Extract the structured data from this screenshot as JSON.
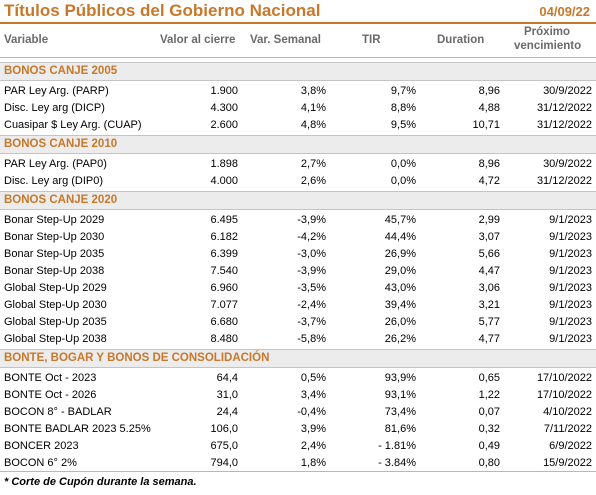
{
  "title": "Títulos Públicos del Gobierno Nacional",
  "date": "04/09/22",
  "headers": {
    "variable": "Variable",
    "valor": "Valor al cierre",
    "var_semanal": "Var. Semanal",
    "tir": "TIR",
    "duration": "Duration",
    "vencimiento_1": "Próximo",
    "vencimiento_2": "vencimiento"
  },
  "sections": [
    {
      "title": "BONOS CANJE 2005",
      "rows": [
        {
          "name": "PAR Ley Arg. (PARP)",
          "valor": "1.900",
          "var": "3,8%",
          "tir": "9,7%",
          "duration": "8,96",
          "venc": "30/9/2022"
        },
        {
          "name": "Disc. Ley arg (DICP)",
          "valor": "4.300",
          "var": "4,1%",
          "tir": "8,8%",
          "duration": "4,88",
          "venc": "31/12/2022"
        },
        {
          "name": "Cuasipar $ Ley Arg. (CUAP)",
          "valor": "2.600",
          "var": "4,8%",
          "tir": "9,5%",
          "duration": "10,71",
          "venc": "31/12/2022"
        }
      ]
    },
    {
      "title": "BONOS CANJE 2010",
      "rows": [
        {
          "name": "PAR Ley Arg. (PAP0)",
          "valor": "1.898",
          "var": "2,7%",
          "tir": "0,0%",
          "duration": "8,96",
          "venc": "30/9/2022"
        },
        {
          "name": "Disc. Ley arg (DIP0)",
          "valor": "4.000",
          "var": "2,6%",
          "tir": "0,0%",
          "duration": "4,72",
          "venc": "31/12/2022"
        }
      ]
    },
    {
      "title": "BONOS CANJE 2020",
      "rows": [
        {
          "name": "Bonar Step-Up 2029",
          "valor": "6.495",
          "var": "-3,9%",
          "tir": "45,7%",
          "duration": "2,99",
          "venc": "9/1/2023"
        },
        {
          "name": "Bonar Step-Up 2030",
          "valor": "6.182",
          "var": "-4,2%",
          "tir": "44,4%",
          "duration": "3,07",
          "venc": "9/1/2023"
        },
        {
          "name": "Bonar Step-Up 2035",
          "valor": "6.399",
          "var": "-3,0%",
          "tir": "26,9%",
          "duration": "5,66",
          "venc": "9/1/2023"
        },
        {
          "name": "Bonar Step-Up 2038",
          "valor": "7.540",
          "var": "-3,9%",
          "tir": "29,0%",
          "duration": "4,47",
          "venc": "9/1/2023"
        },
        {
          "name": "Global Step-Up 2029",
          "valor": "6.960",
          "var": "-3,5%",
          "tir": "43,0%",
          "duration": "3,06",
          "venc": "9/1/2023"
        },
        {
          "name": "Global Step-Up 2030",
          "valor": "7.077",
          "var": "-2,4%",
          "tir": "39,4%",
          "duration": "3,21",
          "venc": "9/1/2023"
        },
        {
          "name": "Global Step-Up 2035",
          "valor": "6.680",
          "var": "-3,7%",
          "tir": "26,0%",
          "duration": "5,77",
          "venc": "9/1/2023"
        },
        {
          "name": "Global Step-Up 2038",
          "valor": "8.480",
          "var": "-5,8%",
          "tir": "26,2%",
          "duration": "4,77",
          "venc": "9/1/2023"
        }
      ]
    },
    {
      "title": "BONTE, BOGAR Y BONOS DE CONSOLIDACIÓN",
      "rows": [
        {
          "name": "BONTE Oct - 2023",
          "valor": "64,4",
          "var": "0,5%",
          "tir": "93,9%",
          "duration": "0,65",
          "venc": "17/10/2022"
        },
        {
          "name": "BONTE Oct - 2026",
          "valor": "31,0",
          "var": "3,4%",
          "tir": "93,1%",
          "duration": "1,22",
          "venc": "17/10/2022"
        },
        {
          "name": "BOCON 8° - BADLAR",
          "valor": "24,4",
          "var": "-0,4%",
          "tir": "73,4%",
          "duration": "0,07",
          "venc": "4/10/2022"
        },
        {
          "name": "BONTE BADLAR 2023 5.25%",
          "valor": "106,0",
          "var": "3,9%",
          "tir": "81,6%",
          "duration": "0,32",
          "venc": "7/11/2022"
        },
        {
          "name": "BONCER 2023",
          "valor": "675,0",
          "var": "2,4%",
          "tir": "-  1.81%",
          "duration": "0,49",
          "venc": "6/9/2022"
        },
        {
          "name": "BOCON 6° 2%",
          "valor": "794,0",
          "var": "1,8%",
          "tir": "-  3.84%",
          "duration": "0,80",
          "venc": "15/9/2022"
        }
      ]
    }
  ],
  "footnote": "* Corte de Cupón durante la semana.",
  "colors": {
    "accent": "#c8782a",
    "section_bg": "#ececec"
  }
}
